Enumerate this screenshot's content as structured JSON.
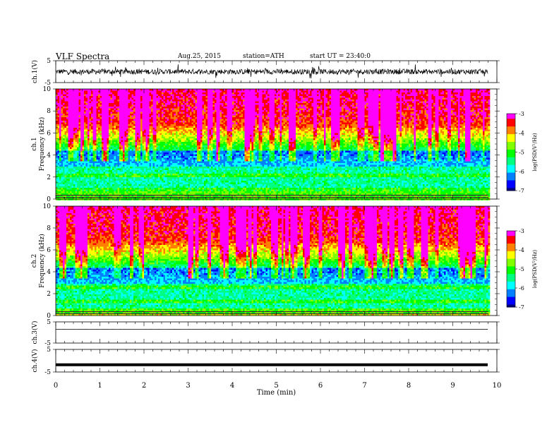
{
  "header": {
    "title": "VLF  Spectra",
    "date": "Aug.25, 2015",
    "station": "station=ATH",
    "start": "start  UT  =   23:40:0"
  },
  "chart_data": [
    {
      "type": "line",
      "panel": "ch1-waveform",
      "ylabel": "ch.1(V)",
      "ylim": [
        -5,
        5
      ],
      "yticks": [
        5,
        -5
      ],
      "x_range_min": [
        0,
        9.8
      ],
      "description_values": {
        "baseline": 0,
        "noise_amplitude": 1.2
      }
    },
    {
      "type": "heatmap",
      "panel": "ch1-spectrogram",
      "ylabel_channel": "ch.1",
      "ylabel": "Frequency  (kHz)",
      "ylim": [
        0,
        10
      ],
      "yticks": [
        0,
        2,
        4,
        6,
        8,
        10
      ],
      "x_range_min": [
        0,
        9.8
      ],
      "colorbar": {
        "label": "log(PSD(V²/Hz)",
        "range": [
          -7,
          -3
        ],
        "ticks": [
          -3,
          -4,
          -5,
          -6,
          -7
        ]
      }
    },
    {
      "type": "heatmap",
      "panel": "ch2-spectrogram",
      "ylabel_channel": "ch.2",
      "ylabel": "Frequency  (kHz)",
      "ylim": [
        0,
        10
      ],
      "yticks": [
        0,
        2,
        4,
        6,
        8,
        10
      ],
      "x_range_min": [
        0,
        9.8
      ],
      "colorbar": {
        "label": "log(PSD(V²/Hz)",
        "range": [
          -7,
          -3
        ],
        "ticks": [
          -3,
          -4,
          -5,
          -6,
          -7
        ]
      }
    },
    {
      "type": "line",
      "panel": "ch3-waveform",
      "ylabel": "ch.3(V)",
      "ylim": [
        -5,
        5
      ],
      "yticks": [
        5,
        -5
      ],
      "x_range_min": [
        0,
        9.8
      ],
      "description_values": {
        "baseline": 1.5,
        "noise_amplitude": 0.05
      }
    },
    {
      "type": "line",
      "panel": "ch4-waveform",
      "ylabel": "ch.4(V)",
      "ylim": [
        -5,
        5
      ],
      "yticks": [
        5,
        -5
      ],
      "x_range_min": [
        0,
        9.8
      ],
      "description_values": {
        "baseline": -1.8,
        "noise_amplitude": 0.0
      }
    }
  ],
  "xaxis": {
    "label": "Time  (min)",
    "ticks": [
      "0",
      "1",
      "2",
      "3",
      "4",
      "5",
      "6",
      "7",
      "8",
      "9",
      "10"
    ],
    "range": [
      0,
      10
    ]
  },
  "colors": {
    "colormap": [
      "#000080",
      "#0000ff",
      "#0080ff",
      "#00ffff",
      "#00ff80",
      "#00ff00",
      "#80ff00",
      "#ffff00",
      "#ff8000",
      "#ff0000",
      "#ff00ff"
    ]
  }
}
